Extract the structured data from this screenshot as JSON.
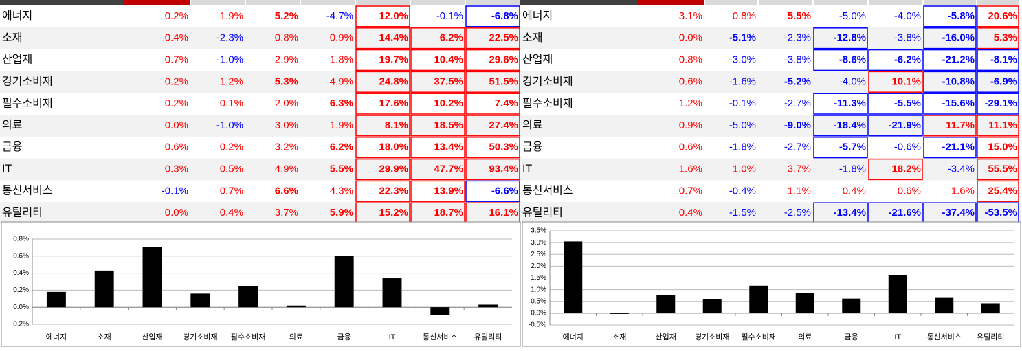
{
  "tables": [
    {
      "rows": [
        {
          "name": "에너지",
          "values": [
            "0.2%",
            "1.9%",
            "5.2%",
            "-4.7%",
            "12.0%",
            "-0.1%",
            "-6.8%"
          ],
          "bold": [
            2,
            4,
            6
          ]
        },
        {
          "name": "소재",
          "values": [
            "0.4%",
            "-2.3%",
            "0.8%",
            "0.9%",
            "14.4%",
            "6.2%",
            "22.5%"
          ],
          "bold": [
            4,
            5,
            6
          ]
        },
        {
          "name": "산업재",
          "values": [
            "0.7%",
            "-1.0%",
            "2.9%",
            "1.8%",
            "19.7%",
            "10.4%",
            "29.6%"
          ],
          "bold": [
            4,
            5,
            6
          ]
        },
        {
          "name": "경기소비재",
          "values": [
            "0.2%",
            "1.2%",
            "5.3%",
            "4.9%",
            "24.8%",
            "37.5%",
            "51.5%"
          ],
          "bold": [
            2,
            4,
            5,
            6
          ]
        },
        {
          "name": "필수소비재",
          "values": [
            "0.2%",
            "0.1%",
            "2.0%",
            "6.3%",
            "17.6%",
            "10.2%",
            "7.4%"
          ],
          "bold": [
            3,
            4,
            5,
            6
          ]
        },
        {
          "name": "의료",
          "values": [
            "0.0%",
            "-1.0%",
            "3.0%",
            "1.9%",
            "8.1%",
            "18.5%",
            "27.4%"
          ],
          "bold": [
            4,
            5,
            6
          ]
        },
        {
          "name": "금융",
          "values": [
            "0.6%",
            "0.2%",
            "3.2%",
            "6.2%",
            "18.0%",
            "13.4%",
            "50.3%"
          ],
          "bold": [
            3,
            4,
            5,
            6
          ]
        },
        {
          "name": "IT",
          "values": [
            "0.3%",
            "0.5%",
            "4.9%",
            "5.5%",
            "29.9%",
            "47.7%",
            "93.4%"
          ],
          "bold": [
            3,
            4,
            5,
            6
          ]
        },
        {
          "name": "통신서비스",
          "values": [
            "-0.1%",
            "0.7%",
            "6.6%",
            "4.3%",
            "22.3%",
            "13.9%",
            "-6.6%"
          ],
          "bold": [
            2,
            4,
            5,
            6
          ]
        },
        {
          "name": "유틸리티",
          "values": [
            "0.0%",
            "0.4%",
            "3.7%",
            "5.9%",
            "15.2%",
            "18.7%",
            "16.1%"
          ],
          "bold": [
            3,
            4,
            5,
            6
          ]
        }
      ]
    },
    {
      "rows": [
        {
          "name": "에너지",
          "values": [
            "3.1%",
            "0.8%",
            "5.5%",
            "-5.0%",
            "-4.0%",
            "-5.8%",
            "20.6%"
          ],
          "bold": [
            2,
            5,
            6
          ]
        },
        {
          "name": "소재",
          "values": [
            "0.0%",
            "-5.1%",
            "-2.3%",
            "-12.8%",
            "-3.8%",
            "-16.0%",
            "5.3%"
          ],
          "bold": [
            1,
            3,
            5,
            6
          ]
        },
        {
          "name": "산업재",
          "values": [
            "0.8%",
            "-3.0%",
            "-3.8%",
            "-8.6%",
            "-6.2%",
            "-21.2%",
            "-8.1%"
          ],
          "bold": [
            3,
            4,
            5,
            6
          ]
        },
        {
          "name": "경기소비재",
          "values": [
            "0.6%",
            "-1.6%",
            "-5.2%",
            "-4.0%",
            "10.1%",
            "-10.8%",
            "-6.9%"
          ],
          "bold": [
            2,
            4,
            5,
            6
          ]
        },
        {
          "name": "필수소비재",
          "values": [
            "1.2%",
            "-0.1%",
            "-2.7%",
            "-11.3%",
            "-5.5%",
            "-15.6%",
            "-29.1%"
          ],
          "bold": [
            3,
            4,
            5,
            6
          ]
        },
        {
          "name": "의료",
          "values": [
            "0.9%",
            "-5.0%",
            "-9.0%",
            "-18.4%",
            "-21.9%",
            "11.7%",
            "11.1%"
          ],
          "bold": [
            2,
            3,
            4,
            5,
            6
          ]
        },
        {
          "name": "금융",
          "values": [
            "0.6%",
            "-1.8%",
            "-2.7%",
            "-5.7%",
            "-0.6%",
            "-21.1%",
            "15.0%"
          ],
          "bold": [
            3,
            5,
            6
          ]
        },
        {
          "name": "IT",
          "values": [
            "1.6%",
            "1.0%",
            "3.7%",
            "-1.8%",
            "18.2%",
            "-3.4%",
            "55.5%"
          ],
          "bold": [
            4,
            6
          ]
        },
        {
          "name": "통신서비스",
          "values": [
            "0.7%",
            "-0.4%",
            "1.1%",
            "0.4%",
            "0.6%",
            "1.6%",
            "25.4%"
          ],
          "bold": [
            6
          ]
        },
        {
          "name": "유틸리티",
          "values": [
            "0.4%",
            "-1.5%",
            "-2.5%",
            "-13.4%",
            "-21.6%",
            "-37.4%",
            "-53.5%"
          ],
          "bold": [
            3,
            4,
            5,
            6
          ]
        }
      ]
    }
  ],
  "chart_data": [
    {
      "type": "bar",
      "categories": [
        "에너지",
        "소재",
        "산업재",
        "경기소비재",
        "필수소비재",
        "의료",
        "금융",
        "IT",
        "통신서비스",
        "유틸리티"
      ],
      "values": [
        0.18,
        0.43,
        0.71,
        0.16,
        0.25,
        0.02,
        0.6,
        0.34,
        -0.09,
        0.03
      ],
      "color": "#000000",
      "ylim": [
        -0.2,
        0.8
      ],
      "yticks": [
        {
          "value": -0.2,
          "label": "-0.2%"
        },
        {
          "value": 0,
          "label": "0.0%"
        },
        {
          "value": 0.2,
          "label": "0.2%"
        },
        {
          "value": 0.4,
          "label": "0.4%"
        },
        {
          "value": 0.6,
          "label": "0.6%"
        },
        {
          "value": 0.8,
          "label": "0.8%"
        }
      ],
      "grid": true
    },
    {
      "type": "bar",
      "categories": [
        "에너지",
        "소재",
        "산업재",
        "경기소비재",
        "필수소비재",
        "의료",
        "금융",
        "IT",
        "통신서비스",
        "유틸리티"
      ],
      "values": [
        3.05,
        -0.03,
        0.78,
        0.6,
        1.17,
        0.85,
        0.62,
        1.62,
        0.65,
        0.42
      ],
      "color": "#000000",
      "ylim": [
        -0.5,
        3.5
      ],
      "yticks": [
        {
          "value": -0.5,
          "label": "-0.5%"
        },
        {
          "value": 0,
          "label": "0.0%"
        },
        {
          "value": 0.5,
          "label": "0.5%"
        },
        {
          "value": 1,
          "label": "1.0%"
        },
        {
          "value": 1.5,
          "label": "1.5%"
        },
        {
          "value": 2,
          "label": "2.0%"
        },
        {
          "value": 2.5,
          "label": "2.5%"
        },
        {
          "value": 3,
          "label": "3.0%"
        },
        {
          "value": 3.5,
          "label": "3.5%"
        }
      ],
      "grid": true
    }
  ]
}
